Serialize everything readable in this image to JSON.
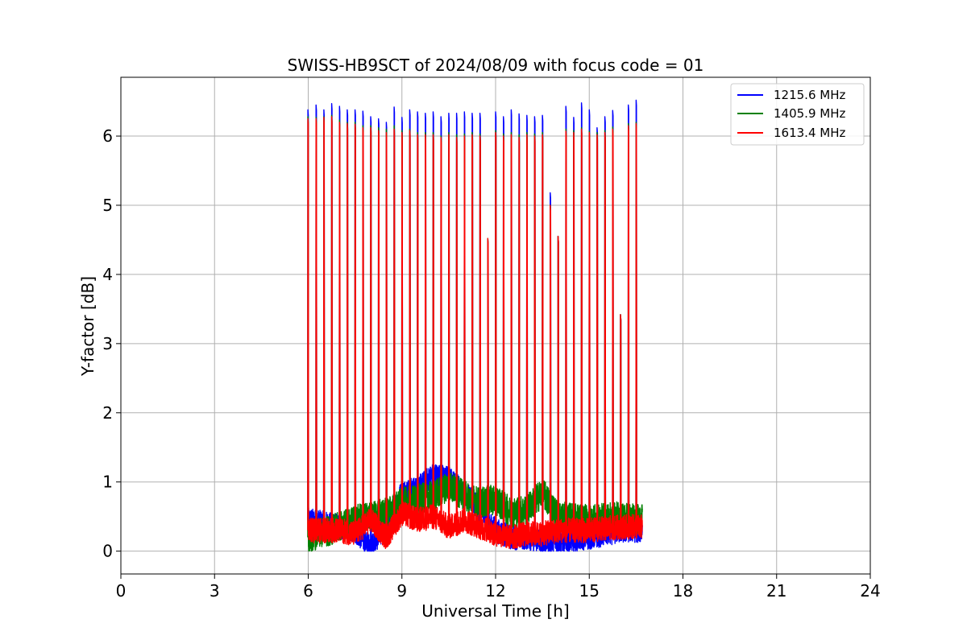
{
  "chart_data": {
    "type": "line",
    "title": "SWISS-HB9SCT of 2024/08/09 with focus code = 01",
    "xlabel": "Universal Time [h]",
    "ylabel": "Y-factor [dB]",
    "xlim": [
      0,
      24
    ],
    "ylim": [
      -0.33,
      6.85
    ],
    "xticks": [
      0,
      3,
      6,
      9,
      12,
      15,
      18,
      21,
      24
    ],
    "yticks": [
      0,
      1,
      2,
      3,
      4,
      5,
      6
    ],
    "grid": true,
    "legend_position": "upper-right",
    "series": [
      {
        "name": "1215.6 MHz",
        "color": "#0000ff",
        "baseline": [
          [
            6.0,
            0.45
          ],
          [
            7.5,
            0.3
          ],
          [
            8.0,
            0.05
          ],
          [
            8.5,
            0.4
          ],
          [
            9.0,
            0.85
          ],
          [
            9.5,
            0.9
          ],
          [
            10.0,
            1.1
          ],
          [
            10.5,
            1.05
          ],
          [
            11.0,
            0.85
          ],
          [
            11.5,
            0.6
          ],
          [
            12.0,
            0.3
          ],
          [
            12.5,
            0.2
          ],
          [
            13.0,
            0.2
          ],
          [
            13.5,
            0.15
          ],
          [
            14.0,
            0.15
          ],
          [
            15.0,
            0.2
          ],
          [
            16.0,
            0.3
          ],
          [
            16.7,
            0.3
          ]
        ],
        "peaks": [
          [
            5.99,
            6.38
          ],
          [
            6.25,
            6.45
          ],
          [
            6.5,
            6.38
          ],
          [
            6.75,
            6.47
          ],
          [
            7.0,
            6.43
          ],
          [
            7.25,
            6.38
          ],
          [
            7.5,
            6.38
          ],
          [
            7.75,
            6.36
          ],
          [
            8.0,
            6.28
          ],
          [
            8.25,
            6.25
          ],
          [
            8.5,
            6.2
          ],
          [
            8.75,
            6.42
          ],
          [
            9.0,
            6.27
          ],
          [
            9.25,
            6.38
          ],
          [
            9.5,
            6.35
          ],
          [
            9.75,
            6.33
          ],
          [
            10.0,
            6.35
          ],
          [
            10.25,
            6.28
          ],
          [
            10.5,
            6.33
          ],
          [
            10.75,
            6.33
          ],
          [
            11.0,
            6.35
          ],
          [
            11.25,
            6.33
          ],
          [
            11.5,
            6.33
          ],
          [
            11.75,
            4.5
          ],
          [
            12.0,
            6.35
          ],
          [
            12.25,
            6.28
          ],
          [
            12.5,
            6.38
          ],
          [
            12.75,
            6.32
          ],
          [
            13.0,
            6.3
          ],
          [
            13.25,
            6.28
          ],
          [
            13.5,
            6.3
          ],
          [
            13.75,
            5.18
          ],
          [
            14.0,
            4.55
          ],
          [
            14.25,
            6.43
          ],
          [
            14.5,
            6.27
          ],
          [
            14.75,
            6.48
          ],
          [
            15.0,
            6.38
          ],
          [
            15.25,
            6.12
          ],
          [
            15.5,
            6.28
          ],
          [
            15.75,
            6.37
          ],
          [
            16.0,
            3.42
          ],
          [
            16.25,
            6.45
          ],
          [
            16.5,
            6.52
          ]
        ]
      },
      {
        "name": "1405.9 MHz",
        "color": "#008000",
        "baseline": [
          [
            6.0,
            0.2
          ],
          [
            7.0,
            0.35
          ],
          [
            7.5,
            0.45
          ],
          [
            8.0,
            0.5
          ],
          [
            8.5,
            0.55
          ],
          [
            9.0,
            0.7
          ],
          [
            9.5,
            0.75
          ],
          [
            10.0,
            0.8
          ],
          [
            10.5,
            0.95
          ],
          [
            11.0,
            0.8
          ],
          [
            11.5,
            0.7
          ],
          [
            12.0,
            0.75
          ],
          [
            12.5,
            0.55
          ],
          [
            13.0,
            0.6
          ],
          [
            13.5,
            0.85
          ],
          [
            14.0,
            0.5
          ],
          [
            15.0,
            0.45
          ],
          [
            16.0,
            0.5
          ],
          [
            16.7,
            0.45
          ]
        ],
        "peaks": [
          [
            5.99,
            6.28
          ],
          [
            6.25,
            6.27
          ],
          [
            6.5,
            6.28
          ],
          [
            6.75,
            6.3
          ],
          [
            7.0,
            6.23
          ],
          [
            7.25,
            6.2
          ],
          [
            7.5,
            6.2
          ],
          [
            7.75,
            6.15
          ],
          [
            8.0,
            6.15
          ],
          [
            8.25,
            6.12
          ],
          [
            8.5,
            6.1
          ],
          [
            8.75,
            6.15
          ],
          [
            9.0,
            6.08
          ],
          [
            9.25,
            6.1
          ],
          [
            9.5,
            6.05
          ],
          [
            9.75,
            6.05
          ],
          [
            10.0,
            6.05
          ],
          [
            10.25,
            6.0
          ],
          [
            10.5,
            6.05
          ],
          [
            10.75,
            6.02
          ],
          [
            11.0,
            6.03
          ],
          [
            11.25,
            6.05
          ],
          [
            11.5,
            6.03
          ],
          [
            11.75,
            4.52
          ],
          [
            12.0,
            6.08
          ],
          [
            12.25,
            6.03
          ],
          [
            12.5,
            6.05
          ],
          [
            12.75,
            6.02
          ],
          [
            13.0,
            6.05
          ],
          [
            13.25,
            6.03
          ],
          [
            13.5,
            6.05
          ],
          [
            13.75,
            5.0
          ],
          [
            14.0,
            4.55
          ],
          [
            14.25,
            6.1
          ],
          [
            14.5,
            6.08
          ],
          [
            14.75,
            6.12
          ],
          [
            15.0,
            6.07
          ],
          [
            15.25,
            6.05
          ],
          [
            15.5,
            6.08
          ],
          [
            15.75,
            6.13
          ],
          [
            16.0,
            3.42
          ],
          [
            16.25,
            6.18
          ],
          [
            16.5,
            6.2
          ]
        ]
      },
      {
        "name": "1613.4 MHz",
        "color": "#ff0000",
        "baseline": [
          [
            6.0,
            0.3
          ],
          [
            7.0,
            0.3
          ],
          [
            7.5,
            0.25
          ],
          [
            8.0,
            0.45
          ],
          [
            8.5,
            0.2
          ],
          [
            9.0,
            0.55
          ],
          [
            9.5,
            0.45
          ],
          [
            10.0,
            0.5
          ],
          [
            10.5,
            0.35
          ],
          [
            11.0,
            0.45
          ],
          [
            11.5,
            0.35
          ],
          [
            12.0,
            0.25
          ],
          [
            12.5,
            0.2
          ],
          [
            13.0,
            0.25
          ],
          [
            13.5,
            0.25
          ],
          [
            14.0,
            0.3
          ],
          [
            15.0,
            0.3
          ],
          [
            16.0,
            0.35
          ],
          [
            16.7,
            0.35
          ]
        ],
        "peaks": [
          [
            5.99,
            6.25
          ],
          [
            6.25,
            6.25
          ],
          [
            6.5,
            6.27
          ],
          [
            6.75,
            6.28
          ],
          [
            7.0,
            6.2
          ],
          [
            7.25,
            6.18
          ],
          [
            7.5,
            6.17
          ],
          [
            7.75,
            6.12
          ],
          [
            8.0,
            6.12
          ],
          [
            8.25,
            6.08
          ],
          [
            8.5,
            6.05
          ],
          [
            8.75,
            6.1
          ],
          [
            9.0,
            6.05
          ],
          [
            9.25,
            6.08
          ],
          [
            9.5,
            6.02
          ],
          [
            9.75,
            6.02
          ],
          [
            10.0,
            6.02
          ],
          [
            10.25,
            5.98
          ],
          [
            10.5,
            6.02
          ],
          [
            10.75,
            5.98
          ],
          [
            11.0,
            6.0
          ],
          [
            11.25,
            6.02
          ],
          [
            11.5,
            6.0
          ],
          [
            11.75,
            4.52
          ],
          [
            12.0,
            6.05
          ],
          [
            12.25,
            6.0
          ],
          [
            12.5,
            6.02
          ],
          [
            12.75,
            5.98
          ],
          [
            13.0,
            6.02
          ],
          [
            13.25,
            6.0
          ],
          [
            13.5,
            6.02
          ],
          [
            13.75,
            5.0
          ],
          [
            14.0,
            4.55
          ],
          [
            14.25,
            6.07
          ],
          [
            14.5,
            6.05
          ],
          [
            14.75,
            6.1
          ],
          [
            15.0,
            6.05
          ],
          [
            15.25,
            6.02
          ],
          [
            15.5,
            6.05
          ],
          [
            15.75,
            6.1
          ],
          [
            16.0,
            3.42
          ],
          [
            16.25,
            6.15
          ],
          [
            16.5,
            6.18
          ]
        ]
      }
    ]
  }
}
